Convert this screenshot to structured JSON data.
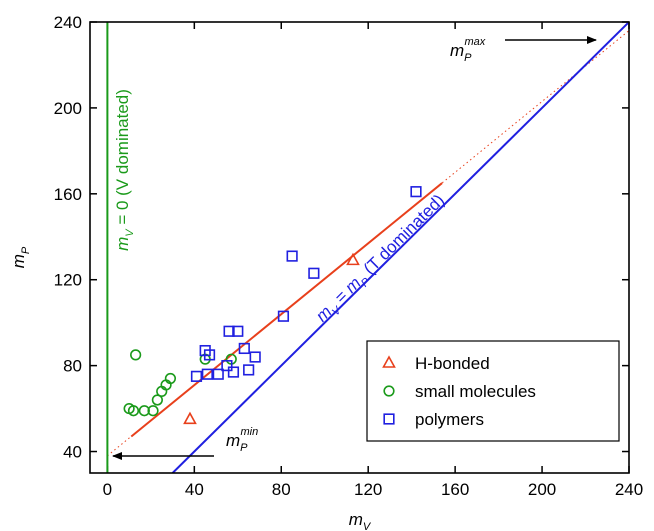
{
  "chart_data": {
    "type": "scatter",
    "x_label": {
      "parts": [
        "m",
        "V"
      ]
    },
    "y_label": {
      "parts": [
        "m",
        "P"
      ]
    },
    "xlim": [
      -8,
      240
    ],
    "ylim": [
      30,
      240
    ],
    "xticks": [
      0,
      40,
      80,
      120,
      160,
      200,
      240
    ],
    "yticks": [
      40,
      80,
      120,
      160,
      200,
      240
    ],
    "series": [
      {
        "name": "H-bonded",
        "color": "#e8401c",
        "marker": "triangle",
        "x": [
          38,
          113
        ],
        "values": [
          55,
          129
        ]
      },
      {
        "name": "small molecules",
        "color": "#1a9a1a",
        "marker": "circle",
        "x": [
          13,
          10,
          12,
          17,
          21,
          23,
          25,
          27,
          29,
          45,
          57
        ],
        "values": [
          85,
          60,
          59,
          59,
          59,
          64,
          68,
          71,
          74,
          83,
          83
        ]
      },
      {
        "name": "polymers",
        "color": "#2020e0",
        "marker": "square",
        "x": [
          45,
          47,
          41,
          46,
          51,
          55,
          58,
          56,
          60,
          63,
          68,
          65,
          81,
          85,
          95,
          142
        ],
        "values": [
          87,
          85,
          75,
          76,
          76,
          80,
          77,
          96,
          96,
          88,
          84,
          78,
          103,
          131,
          123,
          161
        ]
      }
    ],
    "lines": [
      {
        "color": "#e8401c",
        "style": "solid",
        "x": [
          11,
          154
        ],
        "values": [
          47,
          165
        ]
      },
      {
        "color": "#e8401c",
        "style": "dotted",
        "x": [
          0,
          240
        ],
        "values": [
          38,
          236
        ]
      },
      {
        "color": "#1a9a1a",
        "style": "solid",
        "x": [
          0,
          0
        ],
        "values": [
          30,
          240
        ]
      },
      {
        "color": "#2020e0",
        "style": "solid",
        "x": [
          30,
          240
        ],
        "values": [
          30,
          240
        ]
      }
    ],
    "annotations": {
      "v_dominated": {
        "parts": [
          "m",
          "V",
          " = 0 (V dominated)"
        ]
      },
      "t_dominated": {
        "parts": [
          "m",
          "V",
          " = m",
          "P",
          " (T dominated)"
        ]
      },
      "max_label": {
        "parts": [
          "m",
          "P"
        ],
        "sup": "max"
      },
      "min_label": {
        "parts": [
          "m",
          "P"
        ],
        "sup": "min"
      }
    },
    "legend": "lower right"
  }
}
